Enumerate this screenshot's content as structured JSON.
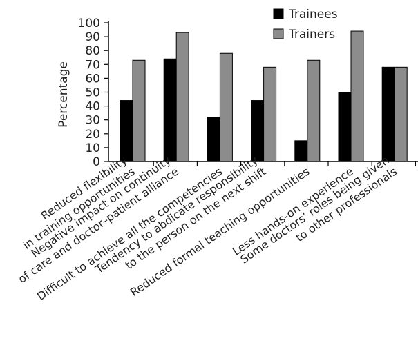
{
  "chart_data": {
    "type": "bar",
    "ylabel": "Percentage",
    "ylim": [
      0,
      100
    ],
    "yticks": [
      0,
      10,
      20,
      30,
      40,
      50,
      60,
      70,
      80,
      90,
      100
    ],
    "legend_position": "top-right",
    "categories": [
      [
        "Reduced flexibility",
        "in training opportunities"
      ],
      [
        "Negative impact on continuity",
        "of care and doctor–patient alliance"
      ],
      [
        "Difficult to achieve all the competencies"
      ],
      [
        "Tendency to abdicate responsibility",
        "to the person on the next shift"
      ],
      [
        "Reduced formal teaching opportunities"
      ],
      [
        "Less hands-on experience"
      ],
      [
        "Some doctors’ roles being given",
        "to other professionals"
      ]
    ],
    "series": [
      {
        "name": "Trainees",
        "color": "#000000",
        "values": [
          44,
          74,
          32,
          44,
          15,
          50,
          68
        ]
      },
      {
        "name": "Trainers",
        "color": "#8c8c8c",
        "values": [
          73,
          93,
          78,
          68,
          73,
          94,
          68
        ]
      }
    ]
  }
}
